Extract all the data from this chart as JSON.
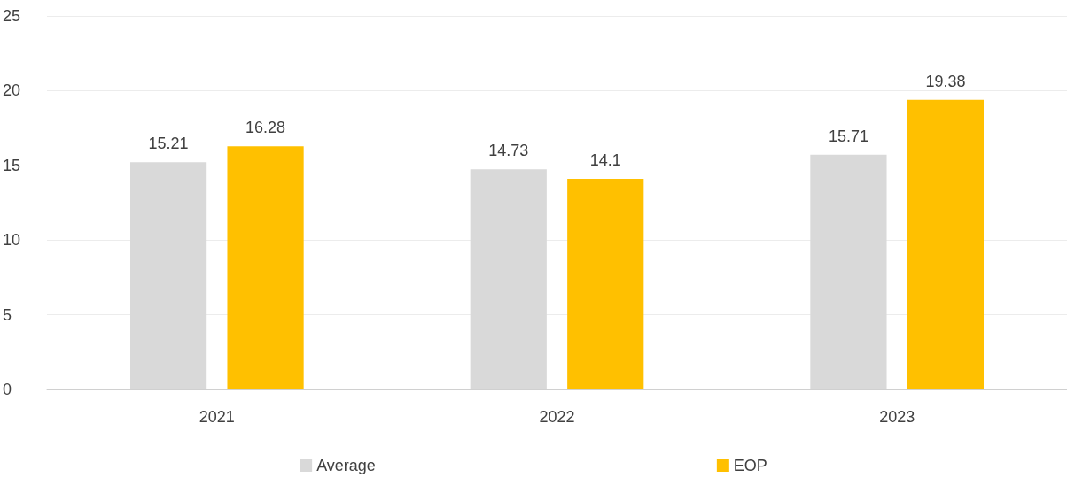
{
  "chart_data": {
    "type": "bar",
    "categories": [
      "2021",
      "2022",
      "2023"
    ],
    "series": [
      {
        "name": "Average",
        "color": "#d9d9d9",
        "values": [
          15.21,
          14.73,
          15.71
        ]
      },
      {
        "name": "EOP",
        "color": "#ffc000",
        "values": [
          16.28,
          14.1,
          19.38
        ]
      }
    ],
    "ylim": [
      0,
      25
    ],
    "yticks": [
      0,
      5,
      10,
      15,
      20,
      25
    ],
    "grid": "y",
    "legend": "bottom",
    "data_labels": true
  }
}
